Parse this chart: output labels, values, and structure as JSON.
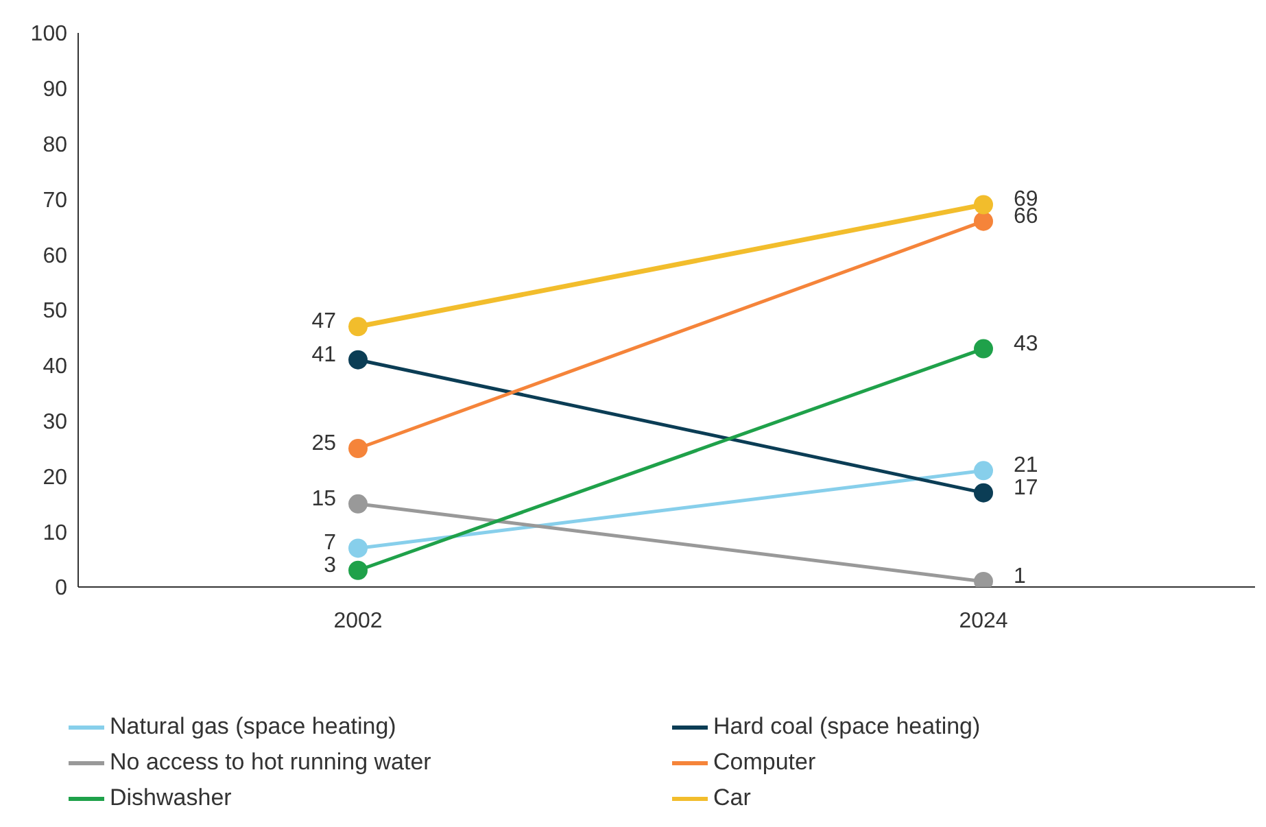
{
  "chart_data": {
    "type": "line",
    "categories": [
      "2002",
      "2024"
    ],
    "series": [
      {
        "name": "Natural gas (space heating)",
        "color": "#87cfeb",
        "values": [
          7,
          21
        ]
      },
      {
        "name": "Hard coal (space heating)",
        "color": "#0b3d55",
        "values": [
          41,
          17
        ]
      },
      {
        "name": "No access to hot running water",
        "color": "#999999",
        "values": [
          15,
          1
        ]
      },
      {
        "name": "Computer",
        "color": "#f5843a",
        "values": [
          25,
          66
        ]
      },
      {
        "name": "Dishwasher",
        "color": "#1fa14a",
        "values": [
          3,
          43
        ]
      },
      {
        "name": "Car",
        "color": "#f2bd2c",
        "values": [
          47,
          69
        ]
      }
    ],
    "ylim": [
      0,
      100
    ],
    "yticks": [
      0,
      10,
      20,
      30,
      40,
      50,
      60,
      70,
      80,
      90,
      100
    ],
    "grid": false,
    "legend": "bottom",
    "marker": "circle",
    "line_style": "solid",
    "data_labels": true
  }
}
